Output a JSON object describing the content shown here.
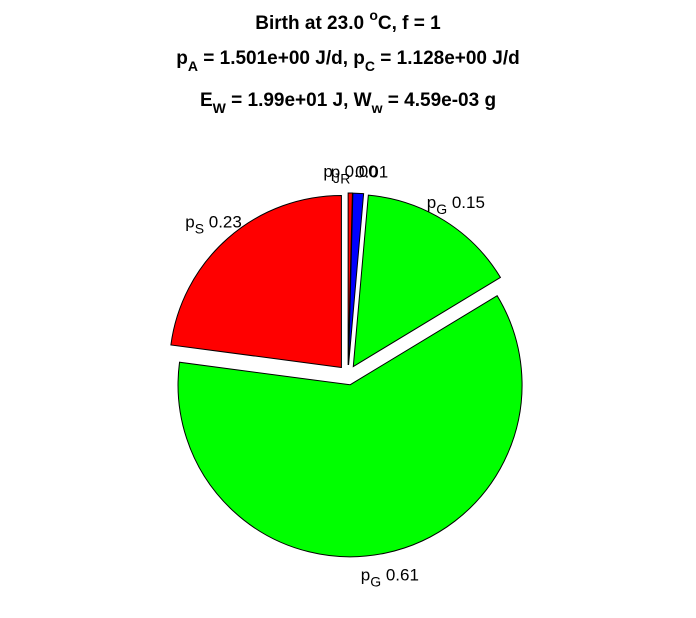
{
  "chart_data": {
    "type": "pie",
    "title_lines": [
      {
        "parts": [
          {
            "t": "Birth at 23.0 "
          },
          {
            "t": "o",
            "sup": true
          },
          {
            "t": "C, f = 1"
          }
        ]
      },
      {
        "parts": [
          {
            "t": "p"
          },
          {
            "t": "A",
            "sub": true
          },
          {
            "t": " = 1.501e+00 J/d, p"
          },
          {
            "t": "C",
            "sub": true
          },
          {
            "t": " = 1.128e+00 J/d"
          }
        ]
      },
      {
        "parts": [
          {
            "t": "E"
          },
          {
            "t": "W",
            "sub": true
          },
          {
            "t": " = 1.99e+01 J, W"
          },
          {
            "t": "w",
            "sub": true
          },
          {
            "t": " = 4.59e-03 g"
          }
        ]
      }
    ],
    "slices": [
      {
        "symbol": "p",
        "subscript": "J",
        "value_label": "0.00",
        "value": 0.004,
        "color": "#ff0000"
      },
      {
        "symbol": "p",
        "subscript": "R",
        "value_label": "0.01",
        "value": 0.01,
        "color": "#0000ff"
      },
      {
        "symbol": "p",
        "subscript": "G",
        "value_label": "0.15",
        "value": 0.15,
        "color": "#00ff00"
      },
      {
        "symbol": "p",
        "subscript": "G",
        "value_label": "0.61",
        "value": 0.61,
        "color": "#00ff00"
      },
      {
        "symbol": "p",
        "subscript": "S",
        "value_label": "0.23",
        "value": 0.23,
        "color": "#ff0000"
      }
    ]
  }
}
